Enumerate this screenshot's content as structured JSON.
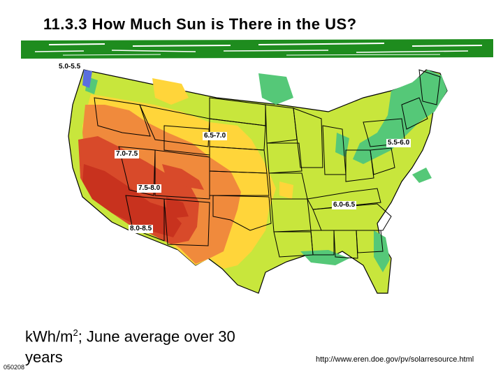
{
  "title": "11.3.3 How Much Sun is There in the US?",
  "labels": {
    "nw": "5.0-5.5",
    "plains": "6.5-7.0",
    "northeast": "5.5-6.0",
    "utah": "7.0-7.5",
    "colorado": "7.5-8.0",
    "southeast": "6.0-6.5",
    "southwest": "8.0-8.5"
  },
  "units": {
    "prefix": "kWh/m",
    "exponent": "2",
    "suffix": "; June average over 30 years"
  },
  "source_url": "http://www.eren.doe.gov/pv/solarresource.html",
  "slide_code": "050208",
  "colors": {
    "band_8_0_8_5": "#c8321e",
    "band_7_5_8_0": "#d84a2a",
    "band_7_0_7_5": "#f08a3c",
    "band_6_5_7_0": "#ffd53a",
    "band_6_0_6_5": "#c8e63c",
    "band_5_5_6_0": "#55c878",
    "band_5_0_5_5": "#5a6ee0",
    "title_bar_green": "#1e8c1e"
  }
}
